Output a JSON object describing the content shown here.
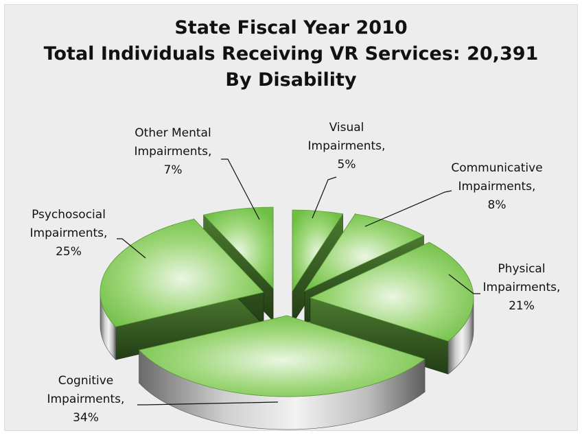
{
  "chart_data": {
    "type": "pie",
    "style": "3d-exploded",
    "title": [
      "State Fiscal Year 2010",
      "Total Individuals Receiving VR Services: 20,391",
      "By Disability"
    ],
    "slices": [
      {
        "label": "Visual Impairments",
        "value": 5,
        "display": "5%"
      },
      {
        "label": "Communicative Impairments",
        "value": 8,
        "display": "8%"
      },
      {
        "label": "Physical Impairments",
        "value": 21,
        "display": "21%"
      },
      {
        "label": "Cognitive Impairments",
        "value": 34,
        "display": "34%"
      },
      {
        "label": "Psychosocial Impairments",
        "value": 25,
        "display": "25%"
      },
      {
        "label": "Other Mental Impairments",
        "value": 7,
        "display": "7%"
      }
    ],
    "colors": {
      "top_light": "#eaf6e2",
      "top_mid": "#9fd77a",
      "top_dark": "#6fbf45",
      "side_light": "#6a9e42",
      "side_dark": "#2b4a1c",
      "rim_light": "#e8e8e8",
      "rim_dark": "#6a6a6a"
    }
  }
}
